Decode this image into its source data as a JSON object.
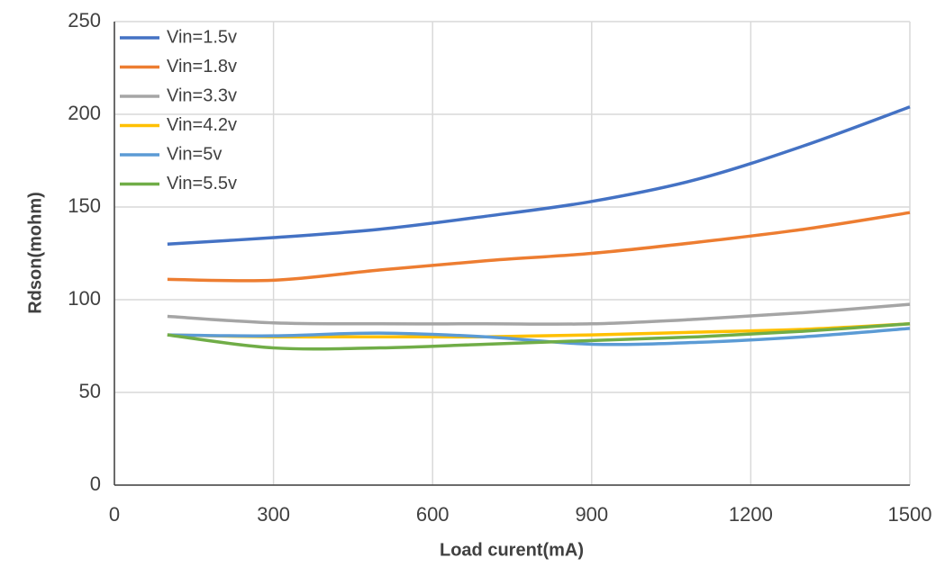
{
  "chart_data": {
    "type": "line",
    "x_label": "Load curent(mA)",
    "y_label": "Rdson(mohm)",
    "x": [
      100,
      300,
      500,
      700,
      900,
      1100,
      1300,
      1500
    ],
    "series": [
      {
        "name": "Vin=1.5v",
        "color": "#4472c4",
        "values": [
          130,
          133.5,
          138,
          145,
          153,
          165,
          183,
          204
        ]
      },
      {
        "name": "Vin=1.8v",
        "color": "#ed7d31",
        "values": [
          111,
          110.5,
          116,
          121,
          125,
          131,
          138,
          147
        ]
      },
      {
        "name": "Vin=3.3v",
        "color": "#a5a5a5",
        "values": [
          91,
          87.5,
          87,
          87,
          87,
          89.5,
          93,
          97.5
        ]
      },
      {
        "name": "Vin=4.2v",
        "color": "#ffc000",
        "values": [
          81,
          80,
          80,
          80,
          81,
          82.5,
          84,
          87
        ]
      },
      {
        "name": "Vin=5v",
        "color": "#5b9bd5",
        "values": [
          81,
          80.5,
          82,
          80,
          76,
          77,
          80,
          84.5
        ]
      },
      {
        "name": "Vin=5.5v",
        "color": "#70ad47",
        "values": [
          81,
          74,
          74,
          76,
          78,
          80,
          83,
          87
        ]
      }
    ],
    "xlim": [
      0,
      1500
    ],
    "xticks": [
      0,
      300,
      600,
      900,
      1200,
      1500
    ],
    "ylim": [
      0,
      250
    ],
    "yticks": [
      0,
      50,
      100,
      150,
      200,
      250
    ],
    "grid": true,
    "legend": "upper-left"
  }
}
